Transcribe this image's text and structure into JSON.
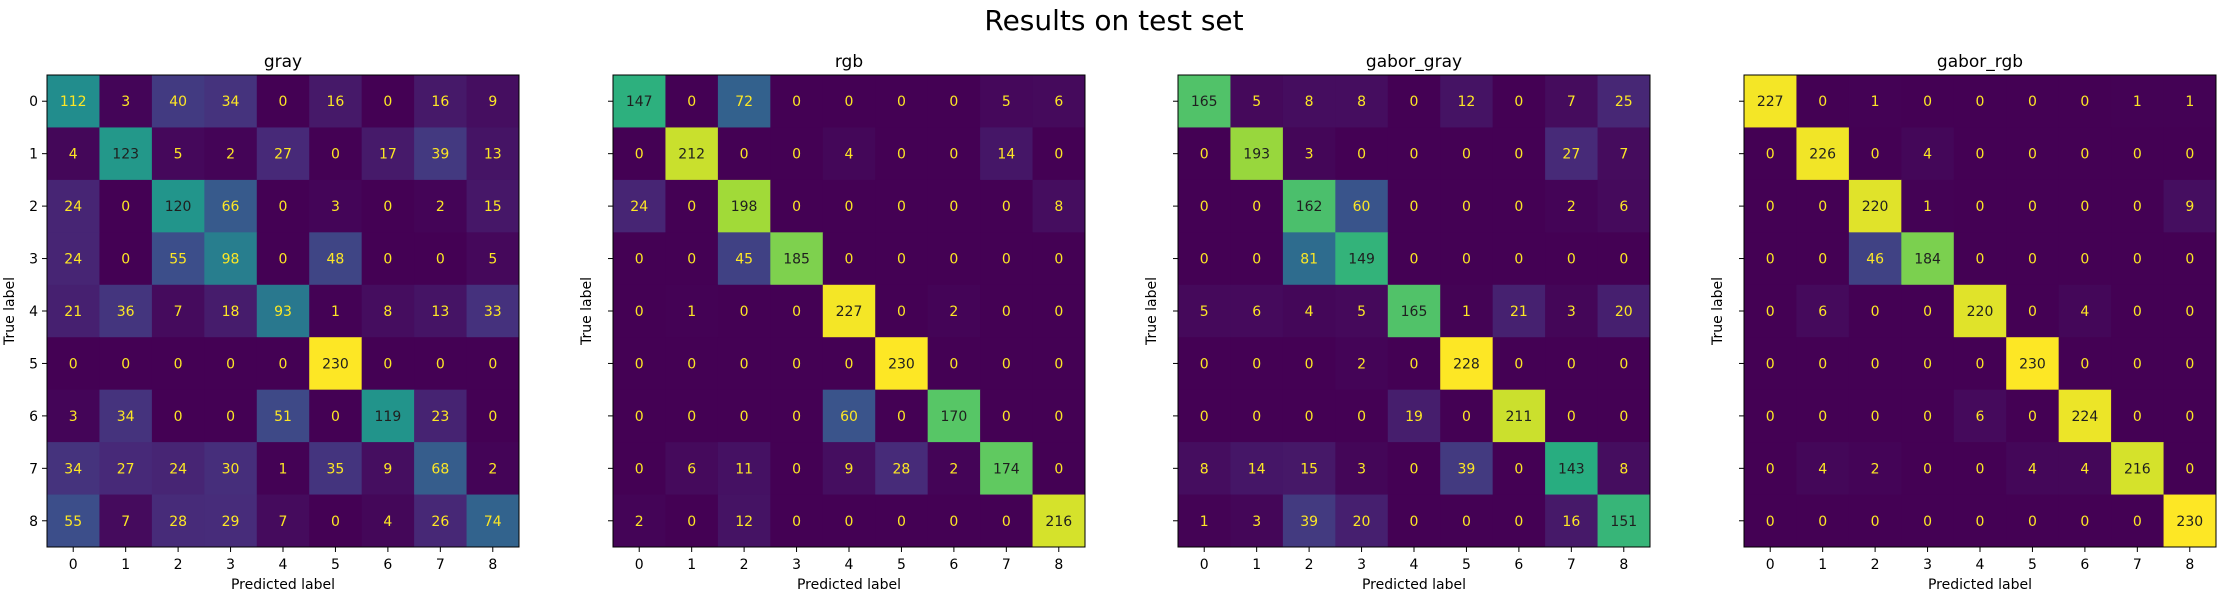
{
  "figure": {
    "title": "Results on test set"
  },
  "colormap": {
    "name": "viridis",
    "low_text_color": "#fde725",
    "high_text_color": "#1f1f1f"
  },
  "chart_data": [
    {
      "type": "heatmap",
      "title": "gray",
      "xlabel": "Predicted label",
      "ylabel": "True label",
      "x_ticks": [
        "0",
        "1",
        "2",
        "3",
        "4",
        "5",
        "6",
        "7",
        "8"
      ],
      "y_ticks": [
        "0",
        "1",
        "2",
        "3",
        "4",
        "5",
        "6",
        "7",
        "8"
      ],
      "matrix": [
        [
          112,
          3,
          40,
          34,
          0,
          16,
          0,
          16,
          9
        ],
        [
          4,
          123,
          5,
          2,
          27,
          0,
          17,
          39,
          13
        ],
        [
          24,
          0,
          120,
          66,
          0,
          3,
          0,
          2,
          15
        ],
        [
          24,
          0,
          55,
          98,
          0,
          48,
          0,
          0,
          5
        ],
        [
          21,
          36,
          7,
          18,
          93,
          1,
          8,
          13,
          33
        ],
        [
          0,
          0,
          0,
          0,
          0,
          230,
          0,
          0,
          0
        ],
        [
          3,
          34,
          0,
          0,
          51,
          0,
          119,
          23,
          0
        ],
        [
          34,
          27,
          24,
          30,
          1,
          35,
          9,
          68,
          2
        ],
        [
          55,
          7,
          28,
          29,
          7,
          0,
          4,
          26,
          74
        ]
      ]
    },
    {
      "type": "heatmap",
      "title": "rgb",
      "xlabel": "Predicted label",
      "ylabel": "True label",
      "x_ticks": [
        "0",
        "1",
        "2",
        "3",
        "4",
        "5",
        "6",
        "7",
        "8"
      ],
      "y_ticks": [
        "0",
        "1",
        "2",
        "3",
        "4",
        "5",
        "6",
        "7",
        "8"
      ],
      "matrix": [
        [
          147,
          0,
          72,
          0,
          0,
          0,
          0,
          5,
          6
        ],
        [
          0,
          212,
          0,
          0,
          4,
          0,
          0,
          14,
          0
        ],
        [
          24,
          0,
          198,
          0,
          0,
          0,
          0,
          0,
          8
        ],
        [
          0,
          0,
          45,
          185,
          0,
          0,
          0,
          0,
          0
        ],
        [
          0,
          1,
          0,
          0,
          227,
          0,
          2,
          0,
          0
        ],
        [
          0,
          0,
          0,
          0,
          0,
          230,
          0,
          0,
          0
        ],
        [
          0,
          0,
          0,
          0,
          60,
          0,
          170,
          0,
          0
        ],
        [
          0,
          6,
          11,
          0,
          9,
          28,
          2,
          174,
          0
        ],
        [
          2,
          0,
          12,
          0,
          0,
          0,
          0,
          0,
          216
        ]
      ]
    },
    {
      "type": "heatmap",
      "title": "gabor_gray",
      "xlabel": "Predicted label",
      "ylabel": "True label",
      "x_ticks": [
        "0",
        "1",
        "2",
        "3",
        "4",
        "5",
        "6",
        "7",
        "8"
      ],
      "y_ticks": [
        "0",
        "1",
        "2",
        "3",
        "4",
        "5",
        "6",
        "7",
        "8"
      ],
      "matrix": [
        [
          165,
          5,
          8,
          8,
          0,
          12,
          0,
          7,
          25
        ],
        [
          0,
          193,
          3,
          0,
          0,
          0,
          0,
          27,
          7
        ],
        [
          0,
          0,
          162,
          60,
          0,
          0,
          0,
          2,
          6
        ],
        [
          0,
          0,
          81,
          149,
          0,
          0,
          0,
          0,
          0
        ],
        [
          5,
          6,
          4,
          5,
          165,
          1,
          21,
          3,
          20
        ],
        [
          0,
          0,
          0,
          2,
          0,
          228,
          0,
          0,
          0
        ],
        [
          0,
          0,
          0,
          0,
          19,
          0,
          211,
          0,
          0
        ],
        [
          8,
          14,
          15,
          3,
          0,
          39,
          0,
          143,
          8
        ],
        [
          1,
          3,
          39,
          20,
          0,
          0,
          0,
          16,
          151
        ]
      ]
    },
    {
      "type": "heatmap",
      "title": "gabor_rgb",
      "xlabel": "Predicted label",
      "ylabel": "True label",
      "x_ticks": [
        "0",
        "1",
        "2",
        "3",
        "4",
        "5",
        "6",
        "7",
        "8"
      ],
      "y_ticks": [
        "0",
        "1",
        "2",
        "3",
        "4",
        "5",
        "6",
        "7",
        "8"
      ],
      "matrix": [
        [
          227,
          0,
          1,
          0,
          0,
          0,
          0,
          1,
          1
        ],
        [
          0,
          226,
          0,
          4,
          0,
          0,
          0,
          0,
          0
        ],
        [
          0,
          0,
          220,
          1,
          0,
          0,
          0,
          0,
          9
        ],
        [
          0,
          0,
          46,
          184,
          0,
          0,
          0,
          0,
          0
        ],
        [
          0,
          6,
          0,
          0,
          220,
          0,
          4,
          0,
          0
        ],
        [
          0,
          0,
          0,
          0,
          0,
          230,
          0,
          0,
          0
        ],
        [
          0,
          0,
          0,
          0,
          6,
          0,
          224,
          0,
          0
        ],
        [
          0,
          4,
          2,
          0,
          0,
          4,
          4,
          216,
          0
        ],
        [
          0,
          0,
          0,
          0,
          0,
          0,
          0,
          0,
          230
        ]
      ]
    }
  ]
}
